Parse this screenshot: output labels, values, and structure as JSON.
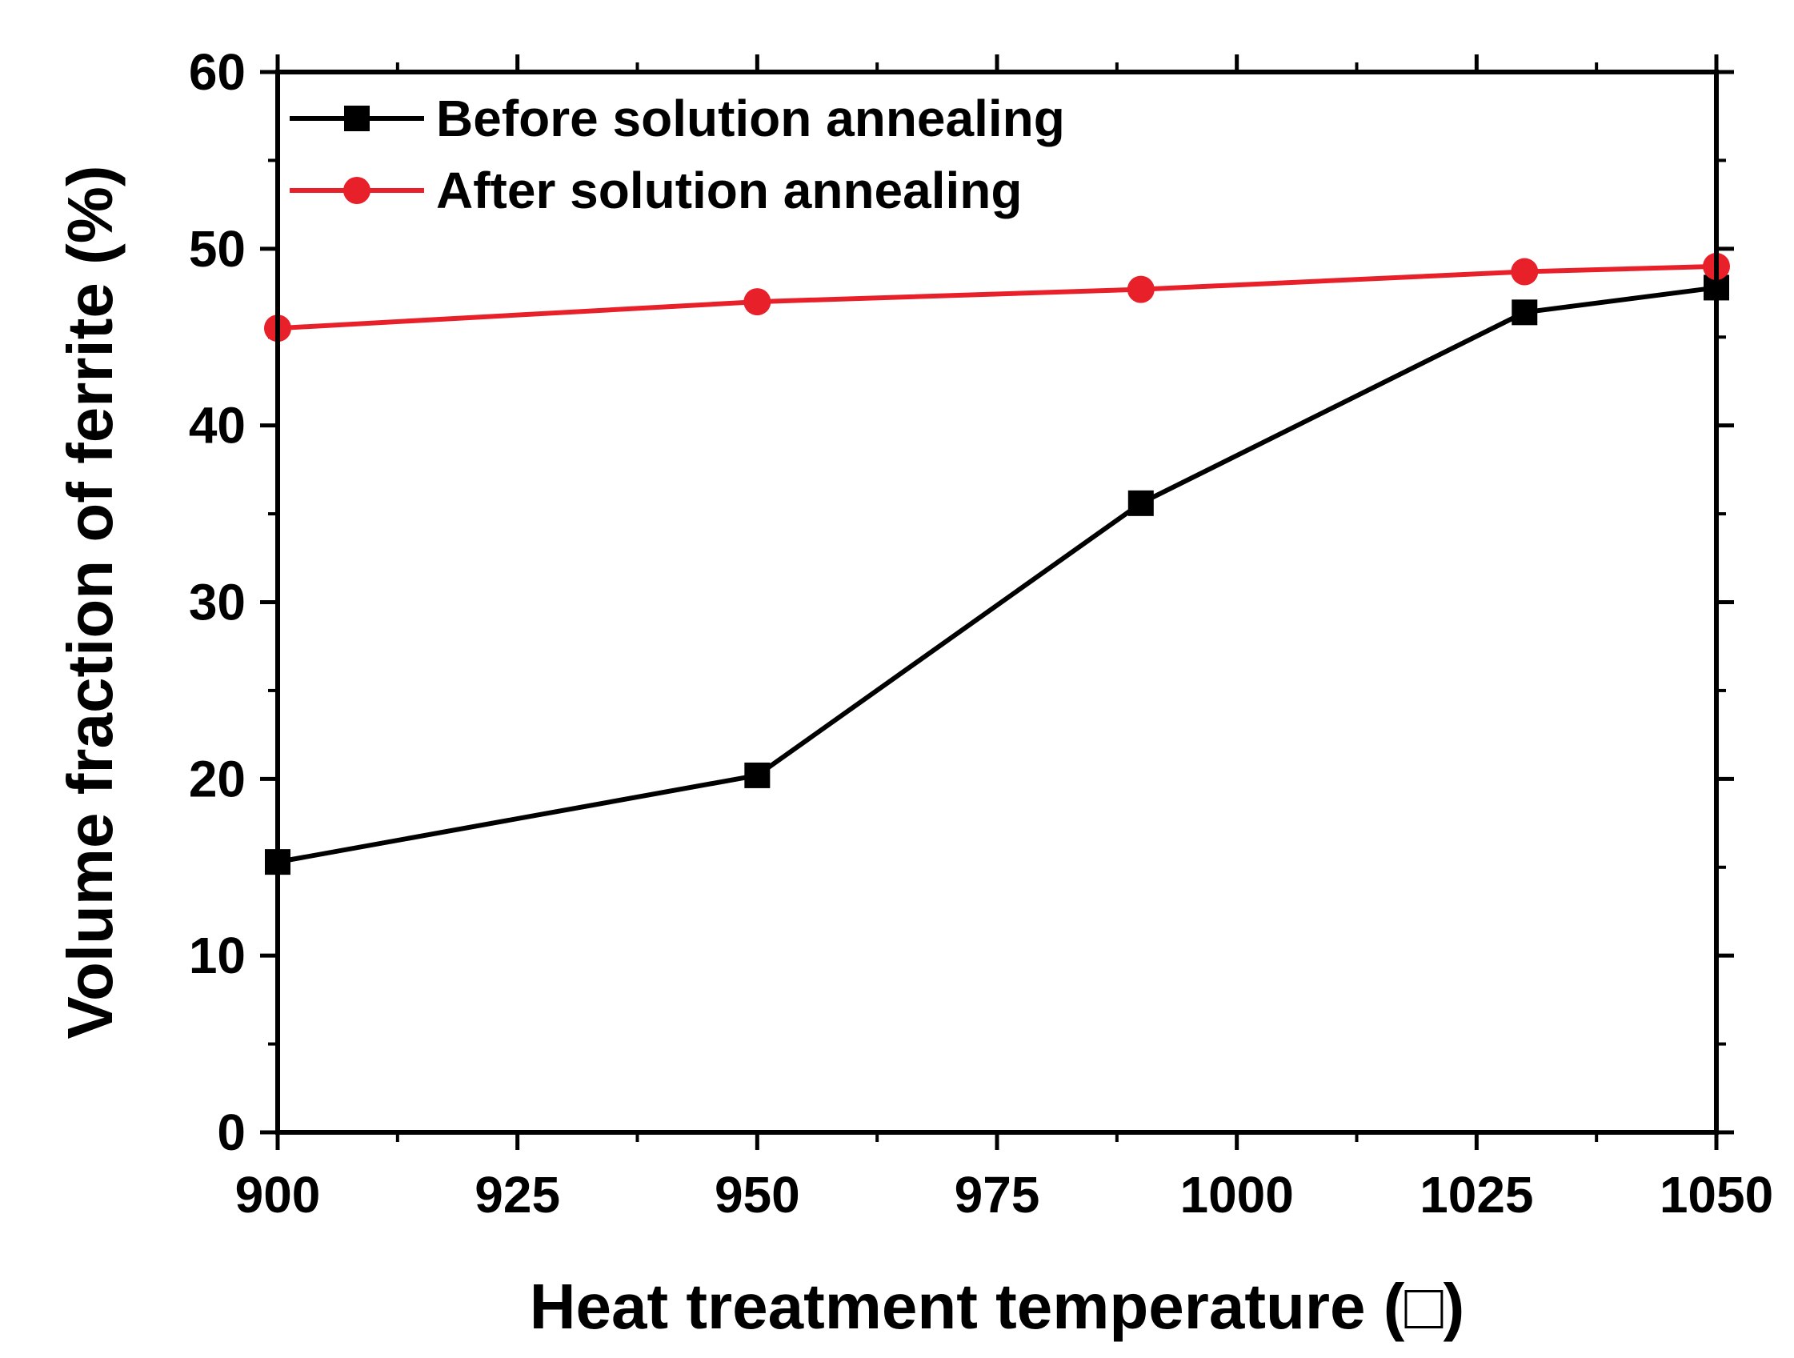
{
  "chart_data": {
    "type": "line",
    "title": "",
    "xlabel": "Heat treatment temperature (□)",
    "ylabel": "Volume fraction of ferrite (%)",
    "xlim": [
      900,
      1050
    ],
    "ylim": [
      0,
      60
    ],
    "xticks": [
      900,
      925,
      950,
      975,
      1000,
      1025,
      1050
    ],
    "yticks": [
      0,
      10,
      20,
      30,
      40,
      50,
      60
    ],
    "grid": false,
    "legend_position": "top-left",
    "series": [
      {
        "name": "Before solution annealing",
        "color": "#000000",
        "marker": "square",
        "x": [
          900,
          950,
          990,
          1030,
          1050
        ],
        "values": [
          15.3,
          20.2,
          35.6,
          46.4,
          47.8
        ]
      },
      {
        "name": "After solution annealing",
        "color": "#e8202a",
        "marker": "circle",
        "x": [
          900,
          950,
          990,
          1030,
          1050
        ],
        "values": [
          45.5,
          47.0,
          47.7,
          48.7,
          49.0
        ]
      }
    ]
  }
}
